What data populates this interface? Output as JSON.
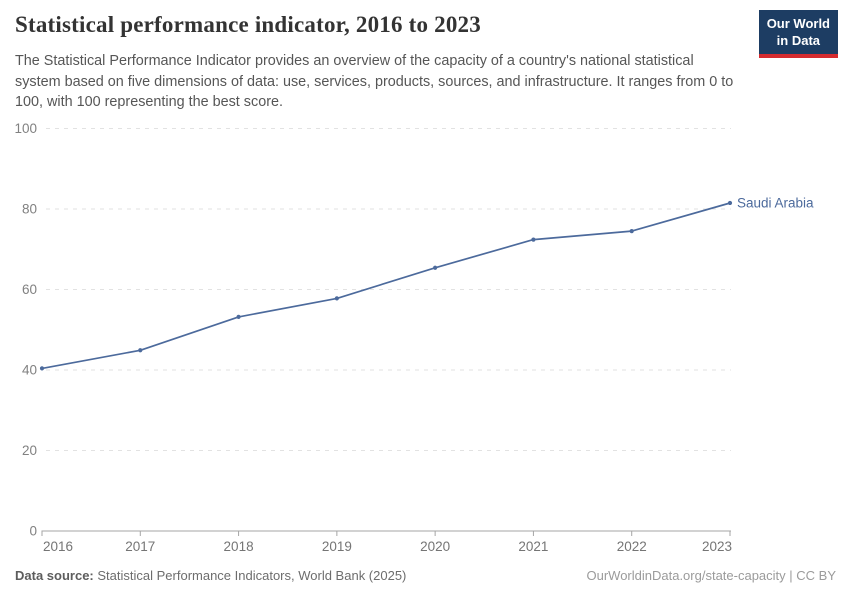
{
  "header": {
    "title": "Statistical performance indicator, 2016 to 2023",
    "subtitle": "The Statistical Performance Indicator provides an overview of the capacity of a country's national statistical system based on five dimensions of data: use, services, products, sources, and infrastructure. It ranges from 0 to 100, with 100 representing the best score.",
    "logo": {
      "line1": "Our World",
      "line2": "in Data",
      "bg_color": "#1d3d63",
      "accent_color": "#d42b2f"
    }
  },
  "chart_data": {
    "type": "line",
    "title": "Statistical performance indicator, 2016 to 2023",
    "entity": "Saudi Arabia",
    "x": [
      2016,
      2017,
      2018,
      2019,
      2020,
      2021,
      2022,
      2023
    ],
    "series": [
      {
        "name": "Saudi Arabia",
        "values": [
          40.4,
          44.9,
          53.2,
          57.8,
          65.4,
          72.4,
          74.5,
          81.5
        ],
        "color": "#4c6a9c"
      }
    ],
    "end_label": "Saudi Arabia",
    "ylim": [
      0,
      100
    ],
    "yticks": [
      0,
      20,
      40,
      60,
      80,
      100
    ],
    "grid": "horizontal-dashed",
    "legend_position": "end-of-line"
  },
  "footer": {
    "datasource_label": "Data source:",
    "datasource_value": "Statistical Performance Indicators, World Bank (2025)",
    "credit": "OurWorldinData.org/state-capacity | CC BY"
  },
  "colors": {
    "line": "#4c6a9c",
    "grid": "#e2e2e2",
    "axis": "#a5a5a5",
    "y_tick_text": "#818181",
    "x_tick_text": "#757575"
  }
}
